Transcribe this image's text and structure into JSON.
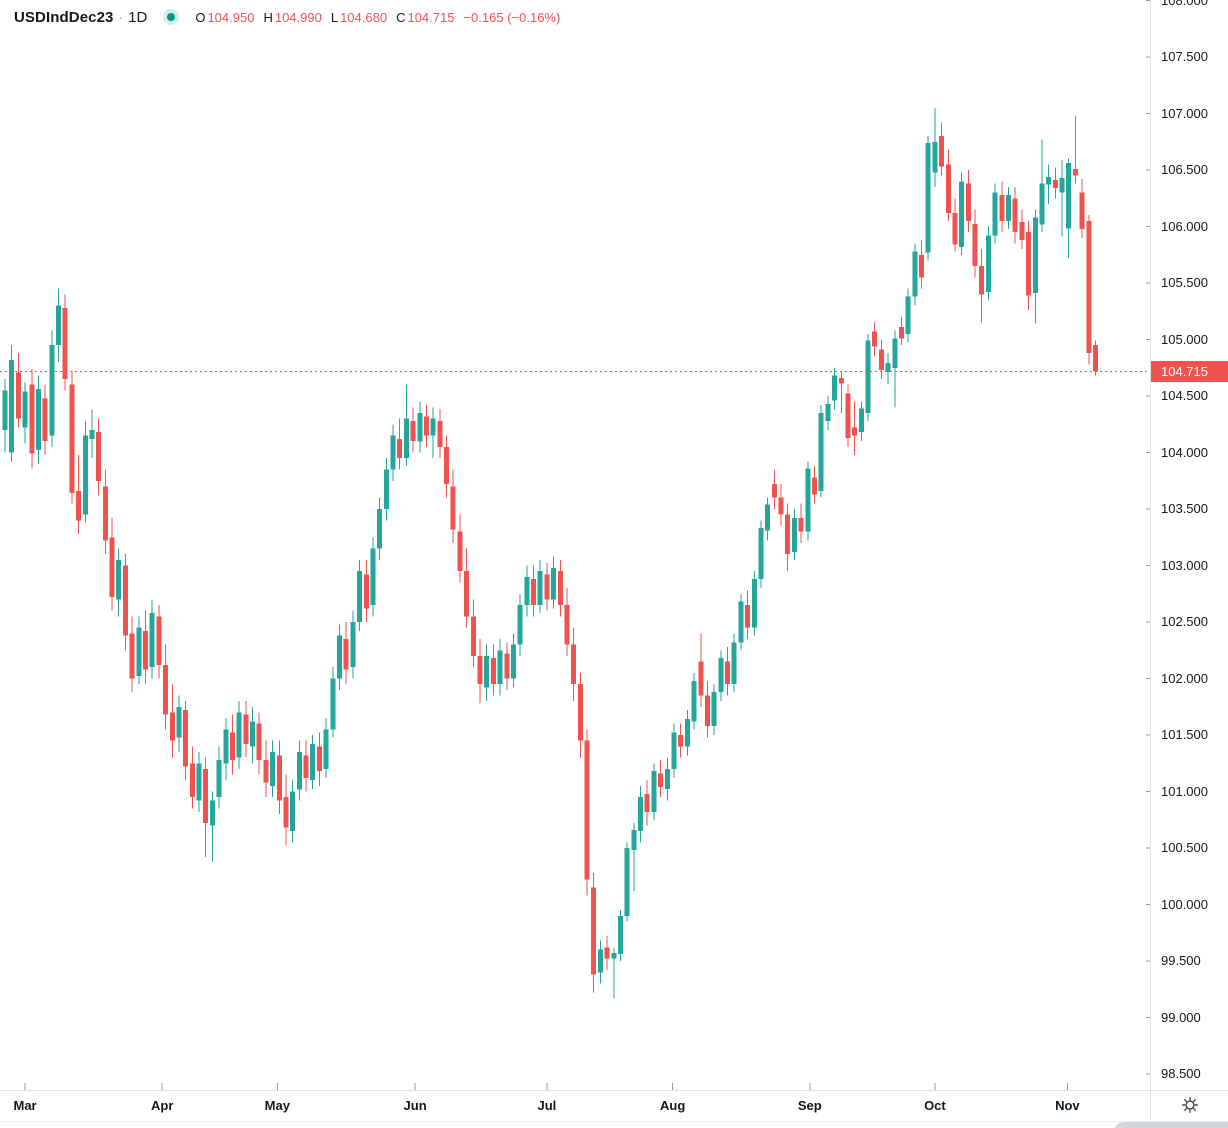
{
  "header": {
    "symbol": "USDIndDec23",
    "separator": "·",
    "timeframe": "1D",
    "ohlc_items": [
      {
        "label": "O",
        "value": "104.950"
      },
      {
        "label": "H",
        "value": "104.990"
      },
      {
        "label": "L",
        "value": "104.680"
      },
      {
        "label": "C",
        "value": "104.715"
      }
    ],
    "change": "−0.165 (−0.16%)"
  },
  "price_axis": {
    "labels": [
      "108.000",
      "107.500",
      "107.000",
      "106.500",
      "106.000",
      "105.500",
      "105.000",
      "104.500",
      "104.000",
      "103.500",
      "103.000",
      "102.500",
      "102.000",
      "101.500",
      "101.000",
      "100.500",
      "100.000",
      "99.500",
      "99.000",
      "98.500"
    ],
    "last_price_badge": "104.715"
  },
  "time_axis": {
    "labels": [
      "Mar",
      "Apr",
      "May",
      "Jun",
      "Jul",
      "Aug",
      "Sep",
      "Oct",
      "Nov"
    ]
  },
  "icons": {
    "axis_settings": "gear-icon",
    "header_status": "market-status-dot"
  },
  "colors": {
    "up": "#26a69a",
    "down": "#ef5350",
    "last_price": "#ef5350",
    "badge_text": "#ffffff",
    "text": "#131722",
    "muted_text": "#9598a1",
    "separator": "#e0e3eb",
    "tick": "#9598a1",
    "status_dot": "#089981"
  },
  "chart_data": {
    "type": "candlestick",
    "symbol": "USDIndDec23",
    "timeframe": "1D",
    "title": "USDIndDec23 · 1D",
    "y_range": [
      98.3,
      108.05
    ],
    "y_tick_step": 0.5,
    "grid": false,
    "legend_position": "top-left",
    "last_price": 104.715,
    "months": [
      {
        "label": "Mar",
        "index": 3
      },
      {
        "label": "Apr",
        "index": 23.5
      },
      {
        "label": "May",
        "index": 40.7
      },
      {
        "label": "Jun",
        "index": 61.3
      },
      {
        "label": "Jul",
        "index": 81
      },
      {
        "label": "Aug",
        "index": 99.8
      },
      {
        "label": "Sep",
        "index": 120.3
      },
      {
        "label": "Oct",
        "index": 139
      },
      {
        "label": "Nov",
        "index": 158.8
      }
    ],
    "candles": [
      [
        104.2,
        104.65,
        104.0,
        104.55
      ],
      [
        104.0,
        104.95,
        103.92,
        104.82
      ],
      [
        104.71,
        104.88,
        104.22,
        104.3
      ],
      [
        104.22,
        104.62,
        104.08,
        104.54
      ],
      [
        104.6,
        104.74,
        103.86,
        103.99
      ],
      [
        104.02,
        104.68,
        103.9,
        104.56
      ],
      [
        104.48,
        104.6,
        103.98,
        104.1
      ],
      [
        104.15,
        105.08,
        104.05,
        104.95
      ],
      [
        104.95,
        105.45,
        104.8,
        105.3
      ],
      [
        105.28,
        105.4,
        104.55,
        104.65
      ],
      [
        104.6,
        104.72,
        103.55,
        103.64
      ],
      [
        103.66,
        103.98,
        103.28,
        103.4
      ],
      [
        103.45,
        104.28,
        103.38,
        104.15
      ],
      [
        104.12,
        104.38,
        103.95,
        104.2
      ],
      [
        104.18,
        104.3,
        103.62,
        103.75
      ],
      [
        103.7,
        103.85,
        103.1,
        103.22
      ],
      [
        103.25,
        103.42,
        102.6,
        102.72
      ],
      [
        102.7,
        103.15,
        102.55,
        103.05
      ],
      [
        103.0,
        103.1,
        102.25,
        102.38
      ],
      [
        102.4,
        102.55,
        101.88,
        102.0
      ],
      [
        102.02,
        102.55,
        101.95,
        102.45
      ],
      [
        102.42,
        102.6,
        101.95,
        102.08
      ],
      [
        102.1,
        102.7,
        102.0,
        102.58
      ],
      [
        102.55,
        102.65,
        102.0,
        102.12
      ],
      [
        102.12,
        102.3,
        101.55,
        101.68
      ],
      [
        101.7,
        101.95,
        101.3,
        101.45
      ],
      [
        101.48,
        101.85,
        101.35,
        101.75
      ],
      [
        101.72,
        101.8,
        101.1,
        101.22
      ],
      [
        101.25,
        101.4,
        100.85,
        100.95
      ],
      [
        100.92,
        101.35,
        100.82,
        101.25
      ],
      [
        101.2,
        101.3,
        100.42,
        100.72
      ],
      [
        100.7,
        101.0,
        100.38,
        100.92
      ],
      [
        100.95,
        101.4,
        100.85,
        101.28
      ],
      [
        101.25,
        101.65,
        101.1,
        101.55
      ],
      [
        101.52,
        101.68,
        101.15,
        101.28
      ],
      [
        101.3,
        101.8,
        101.2,
        101.7
      ],
      [
        101.68,
        101.8,
        101.3,
        101.42
      ],
      [
        101.4,
        101.75,
        101.25,
        101.62
      ],
      [
        101.6,
        101.7,
        101.15,
        101.28
      ],
      [
        101.28,
        101.45,
        100.95,
        101.08
      ],
      [
        101.05,
        101.45,
        100.95,
        101.35
      ],
      [
        101.32,
        101.45,
        100.8,
        100.92
      ],
      [
        100.95,
        101.15,
        100.52,
        100.68
      ],
      [
        100.65,
        101.1,
        100.55,
        101.0
      ],
      [
        101.02,
        101.45,
        100.92,
        101.35
      ],
      [
        101.32,
        101.45,
        101.0,
        101.12
      ],
      [
        101.1,
        101.5,
        101.02,
        101.42
      ],
      [
        101.4,
        101.52,
        101.05,
        101.18
      ],
      [
        101.2,
        101.65,
        101.12,
        101.55
      ],
      [
        101.55,
        102.1,
        101.48,
        102.0
      ],
      [
        102.0,
        102.48,
        101.9,
        102.38
      ],
      [
        102.35,
        102.5,
        101.95,
        102.08
      ],
      [
        102.1,
        102.6,
        102.0,
        102.5
      ],
      [
        102.5,
        103.05,
        102.42,
        102.95
      ],
      [
        102.92,
        103.05,
        102.5,
        102.62
      ],
      [
        102.65,
        103.25,
        102.55,
        103.15
      ],
      [
        103.15,
        103.6,
        103.05,
        103.5
      ],
      [
        103.5,
        103.95,
        103.4,
        103.85
      ],
      [
        103.85,
        104.25,
        103.75,
        104.15
      ],
      [
        104.12,
        104.3,
        103.85,
        103.95
      ],
      [
        103.95,
        104.6,
        103.88,
        104.3
      ],
      [
        104.28,
        104.4,
        104.0,
        104.1
      ],
      [
        104.1,
        104.45,
        104.0,
        104.35
      ],
      [
        104.32,
        104.42,
        104.05,
        104.15
      ],
      [
        104.15,
        104.4,
        103.95,
        104.3
      ],
      [
        104.28,
        104.38,
        103.95,
        104.05
      ],
      [
        104.05,
        104.15,
        103.6,
        103.72
      ],
      [
        103.7,
        103.85,
        103.2,
        103.32
      ],
      [
        103.3,
        103.45,
        102.85,
        102.95
      ],
      [
        102.95,
        103.15,
        102.45,
        102.55
      ],
      [
        102.55,
        102.7,
        102.1,
        102.2
      ],
      [
        102.2,
        102.35,
        101.78,
        101.95
      ],
      [
        101.92,
        102.3,
        101.8,
        102.2
      ],
      [
        102.18,
        102.3,
        101.85,
        101.95
      ],
      [
        101.95,
        102.35,
        101.85,
        102.25
      ],
      [
        102.22,
        102.32,
        101.9,
        102.0
      ],
      [
        102.0,
        102.4,
        101.92,
        102.3
      ],
      [
        102.3,
        102.75,
        102.2,
        102.65
      ],
      [
        102.65,
        103.0,
        102.55,
        102.9
      ],
      [
        102.88,
        103.0,
        102.55,
        102.65
      ],
      [
        102.65,
        103.05,
        102.58,
        102.95
      ],
      [
        102.92,
        103.02,
        102.6,
        102.7
      ],
      [
        102.7,
        103.08,
        102.62,
        102.98
      ],
      [
        102.95,
        103.05,
        102.55,
        102.65
      ],
      [
        102.65,
        102.8,
        102.2,
        102.3
      ],
      [
        102.3,
        102.45,
        101.8,
        101.95
      ],
      [
        101.95,
        102.05,
        101.3,
        101.45
      ],
      [
        101.45,
        101.55,
        100.08,
        100.22
      ],
      [
        100.15,
        100.28,
        99.22,
        99.38
      ],
      [
        99.4,
        99.68,
        99.3,
        99.6
      ],
      [
        99.62,
        99.72,
        99.42,
        99.52
      ],
      [
        99.52,
        99.62,
        99.17,
        99.57
      ],
      [
        99.56,
        99.95,
        99.5,
        99.9
      ],
      [
        99.9,
        100.55,
        99.85,
        100.5
      ],
      [
        100.48,
        100.72,
        100.12,
        100.66
      ],
      [
        100.65,
        101.05,
        100.55,
        100.95
      ],
      [
        100.98,
        101.1,
        100.7,
        100.82
      ],
      [
        100.82,
        101.25,
        100.75,
        101.18
      ],
      [
        101.16,
        101.28,
        100.95,
        101.04
      ],
      [
        101.02,
        101.3,
        100.92,
        101.2
      ],
      [
        101.2,
        101.6,
        101.12,
        101.52
      ],
      [
        101.5,
        101.6,
        101.3,
        101.4
      ],
      [
        101.4,
        101.72,
        101.32,
        101.64
      ],
      [
        101.62,
        102.05,
        101.55,
        101.98
      ],
      [
        102.15,
        102.4,
        101.75,
        101.85
      ],
      [
        101.85,
        101.98,
        101.48,
        101.58
      ],
      [
        101.58,
        101.95,
        101.5,
        101.88
      ],
      [
        101.88,
        102.25,
        101.8,
        102.18
      ],
      [
        102.15,
        102.28,
        101.85,
        101.95
      ],
      [
        101.95,
        102.4,
        101.88,
        102.32
      ],
      [
        102.32,
        102.75,
        102.25,
        102.68
      ],
      [
        102.65,
        102.78,
        102.35,
        102.45
      ],
      [
        102.45,
        102.95,
        102.38,
        102.88
      ],
      [
        102.88,
        103.4,
        102.8,
        103.33
      ],
      [
        103.31,
        103.6,
        103.22,
        103.54
      ],
      [
        103.72,
        103.85,
        103.5,
        103.6
      ],
      [
        103.6,
        103.72,
        103.35,
        103.45
      ],
      [
        103.45,
        103.55,
        102.95,
        103.1
      ],
      [
        103.12,
        103.5,
        103.05,
        103.42
      ],
      [
        103.42,
        103.55,
        103.2,
        103.3
      ],
      [
        103.3,
        103.92,
        103.22,
        103.86
      ],
      [
        103.78,
        103.88,
        103.55,
        103.63
      ],
      [
        103.66,
        104.42,
        103.6,
        104.35
      ],
      [
        104.28,
        104.5,
        104.2,
        104.43
      ],
      [
        104.46,
        104.75,
        104.38,
        104.68
      ],
      [
        104.66,
        104.72,
        104.35,
        104.61
      ],
      [
        104.52,
        104.6,
        104.05,
        104.13
      ],
      [
        104.22,
        104.45,
        103.98,
        104.15
      ],
      [
        104.18,
        104.45,
        104.1,
        104.39
      ],
      [
        104.35,
        105.05,
        104.28,
        104.99
      ],
      [
        105.07,
        105.15,
        104.85,
        104.94
      ],
      [
        104.91,
        105.0,
        104.65,
        104.73
      ],
      [
        104.71,
        104.88,
        104.6,
        104.79
      ],
      [
        104.75,
        105.08,
        104.4,
        105.01
      ],
      [
        105.11,
        105.2,
        104.95,
        105.01
      ],
      [
        105.05,
        105.45,
        104.98,
        105.38
      ],
      [
        105.38,
        105.85,
        105.3,
        105.78
      ],
      [
        105.75,
        105.88,
        105.45,
        105.55
      ],
      [
        105.77,
        106.8,
        105.7,
        106.74
      ],
      [
        106.48,
        107.05,
        106.35,
        106.75
      ],
      [
        106.8,
        106.92,
        106.45,
        106.53
      ],
      [
        106.55,
        106.68,
        106.05,
        106.12
      ],
      [
        106.12,
        106.25,
        105.78,
        105.84
      ],
      [
        105.82,
        106.48,
        105.75,
        106.4
      ],
      [
        106.38,
        106.5,
        105.95,
        106.05
      ],
      [
        106.02,
        106.15,
        105.55,
        105.65
      ],
      [
        105.65,
        105.8,
        105.15,
        105.4
      ],
      [
        105.42,
        106.0,
        105.35,
        105.92
      ],
      [
        105.92,
        106.38,
        105.85,
        106.3
      ],
      [
        106.28,
        106.4,
        105.95,
        106.05
      ],
      [
        106.05,
        106.35,
        105.98,
        106.28
      ],
      [
        106.25,
        106.35,
        105.85,
        105.95
      ],
      [
        106.04,
        106.15,
        105.8,
        105.88
      ],
      [
        105.95,
        106.05,
        105.26,
        105.39
      ],
      [
        105.41,
        106.15,
        105.14,
        106.08
      ],
      [
        106.02,
        106.77,
        105.95,
        106.38
      ],
      [
        106.37,
        106.55,
        106.2,
        106.44
      ],
      [
        106.41,
        106.52,
        106.25,
        106.34
      ],
      [
        106.3,
        106.59,
        105.91,
        106.43
      ],
      [
        105.98,
        106.6,
        105.72,
        106.56
      ],
      [
        106.51,
        106.98,
        106.38,
        106.45
      ],
      [
        106.3,
        106.42,
        105.9,
        105.98
      ],
      [
        106.05,
        106.1,
        104.78,
        104.88
      ],
      [
        104.95,
        104.99,
        104.68,
        104.715
      ]
    ]
  }
}
